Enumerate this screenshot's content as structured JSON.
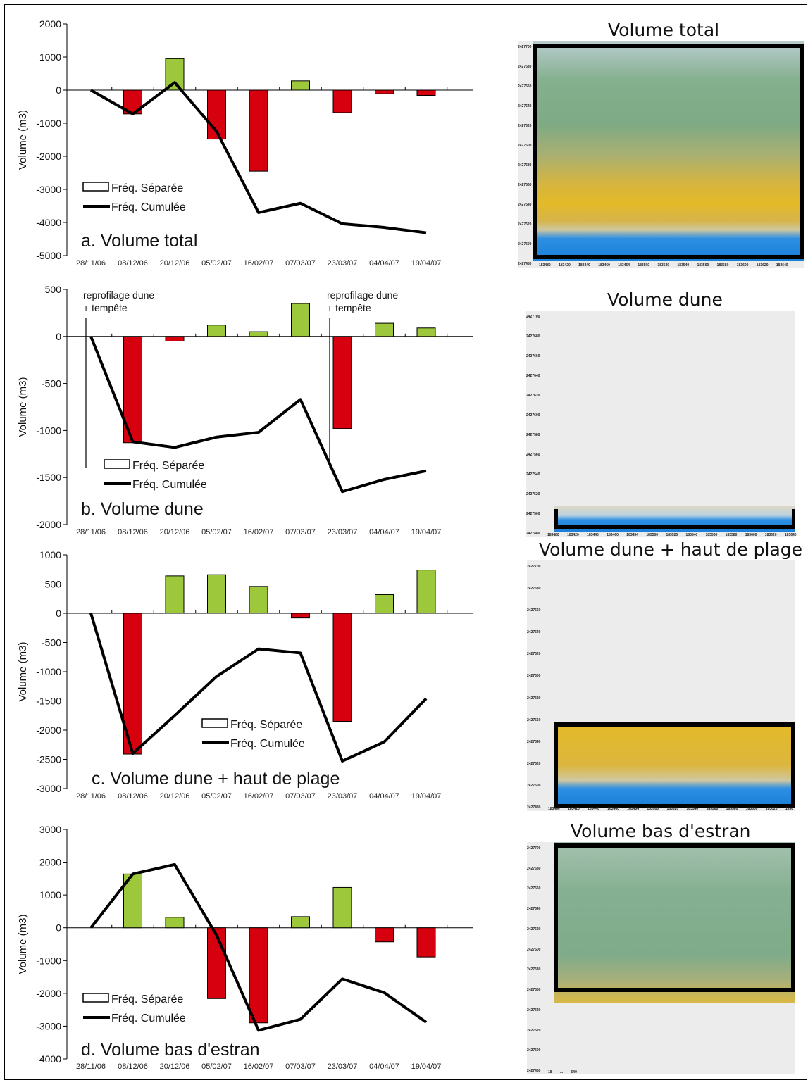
{
  "chart_data": [
    {
      "type": "bar",
      "title": "a. Volume total",
      "ylabel": "Volume (m3)",
      "ylim": [
        -5000,
        2000
      ],
      "yticks": [
        2000,
        1000,
        0,
        -1000,
        -2000,
        -3000,
        -4000,
        -5000
      ],
      "ytick_labels": [
        "2000",
        "1000",
        "0",
        "-1000",
        "-2000",
        "-3000",
        "-4000",
        "-5000"
      ],
      "categories": [
        "28/11/06",
        "08/12/06",
        "20/12/06",
        "05/02/07",
        "16/02/07",
        "07/03/07",
        "23/03/07",
        "04/04/07",
        "19/04/07"
      ],
      "series": [
        {
          "name": "Fréq. Séparée",
          "type": "bar",
          "values": [
            0,
            -720,
            950,
            -1480,
            -2450,
            280,
            -680,
            -110,
            -160
          ]
        },
        {
          "name": "Fréq. Cumulée",
          "type": "line",
          "values": [
            0,
            -720,
            230,
            -1250,
            -3700,
            -3420,
            -4040,
            -4150,
            -4310
          ]
        }
      ],
      "annotations": []
    },
    {
      "type": "bar",
      "title": "b. Volume dune",
      "ylabel": "Volume (m3)",
      "ylim": [
        -2000,
        500
      ],
      "yticks": [
        500,
        0,
        -500,
        -1000,
        -1500,
        -2000
      ],
      "ytick_labels": [
        "500",
        "0",
        "-500",
        "-1000",
        "-1500",
        "-2000"
      ],
      "categories": [
        "28/11/06",
        "08/12/06",
        "20/12/06",
        "05/02/07",
        "16/02/07",
        "07/03/07",
        "23/03/07",
        "04/04/07",
        "19/04/07"
      ],
      "series": [
        {
          "name": "Fréq. Séparée",
          "type": "bar",
          "values": [
            0,
            -1130,
            -50,
            120,
            50,
            350,
            -980,
            140,
            90
          ]
        },
        {
          "name": "Fréq. Cumulée",
          "type": "line",
          "values": [
            0,
            -1120,
            -1180,
            -1070,
            -1020,
            -670,
            -1650,
            -1520,
            -1430
          ]
        }
      ],
      "annotations": [
        {
          "lines": [
            "reprofilage dune",
            "+ tempête"
          ],
          "at_category": 0
        },
        {
          "lines": [
            "reprofilage dune",
            "+ tempête"
          ],
          "at_category": 5.5
        }
      ]
    },
    {
      "type": "bar",
      "title": "c. Volume dune + haut de plage",
      "ylabel": "Volume (m3)",
      "ylim": [
        -3000,
        1000
      ],
      "yticks": [
        1000,
        500,
        0,
        -500,
        -1000,
        -1500,
        -2000,
        -2500,
        -3000
      ],
      "ytick_labels": [
        "1000",
        "500",
        "0",
        "-500",
        "-1000",
        "-1500",
        "-2000",
        "-2500",
        "-3000"
      ],
      "categories": [
        "28/11/06",
        "08/12/06",
        "20/12/06",
        "05/02/07",
        "16/02/07",
        "07/03/07",
        "23/03/07",
        "04/04/07",
        "19/04/07"
      ],
      "series": [
        {
          "name": "Fréq. Séparée",
          "type": "bar",
          "values": [
            0,
            -2410,
            640,
            660,
            460,
            -80,
            -1850,
            320,
            740
          ]
        },
        {
          "name": "Fréq. Cumulée",
          "type": "line",
          "values": [
            0,
            -2400,
            -1750,
            -1080,
            -610,
            -680,
            -2530,
            -2200,
            -1460
          ]
        }
      ],
      "annotations": []
    },
    {
      "type": "bar",
      "title": "d. Volume bas d'estran",
      "ylabel": "Volume (m3)",
      "ylim": [
        -4000,
        3000
      ],
      "yticks": [
        3000,
        2000,
        1000,
        0,
        -1000,
        -2000,
        -3000,
        -4000
      ],
      "ytick_labels": [
        "3000",
        "2000",
        "1000",
        "0",
        "-1000",
        "-2000",
        "-3000",
        "-4000"
      ],
      "categories": [
        "28/11/06",
        "08/12/06",
        "20/12/06",
        "05/02/07",
        "16/02/07",
        "07/03/07",
        "23/03/07",
        "04/04/07",
        "19/04/07"
      ],
      "series": [
        {
          "name": "Fréq. Séparée",
          "type": "bar",
          "values": [
            0,
            1640,
            320,
            -2160,
            -2900,
            340,
            1230,
            -430,
            -890
          ]
        },
        {
          "name": "Fréq. Cumulée",
          "type": "line",
          "values": [
            0,
            1640,
            1930,
            -230,
            -3130,
            -2790,
            -1560,
            -1980,
            -2880
          ]
        }
      ],
      "annotations": []
    }
  ],
  "colors": {
    "positive_bar": "#9dc83c",
    "negative_bar": "#d7000f",
    "line": "#000000",
    "sea": "#1e90e0",
    "sand": "#e3b82a",
    "vegetation": "#7aa88a",
    "map_background": "#ececec",
    "highlight_frame": "#000000"
  },
  "maps": [
    {
      "title": "Volume total",
      "y_ticks": [
        "2427700",
        "2427680",
        "2427660",
        "2427640",
        "2427620",
        "2427600",
        "2427580",
        "2427560",
        "2427540",
        "2427520",
        "2427500",
        "2427480"
      ],
      "x_axis_text": "183480 183420 183440 183460 183454 183500 183520 183540 183560 183580 183600 183620 183640",
      "highlighted_zone": "whole profile"
    },
    {
      "title": "Volume dune",
      "y_ticks": [
        "2427700",
        "2427680",
        "2427660",
        "2427640",
        "2427620",
        "2427600",
        "2427580",
        "2427560",
        "2427540",
        "2427520",
        "2427500",
        "2427480"
      ],
      "x_axis_text": "183480 183420 183440 183460 183454 183500 183520 183540 183560 183580 183600 183620 183640",
      "highlighted_zone": "dune"
    },
    {
      "title": "Volume dune + haut de plage",
      "y_ticks": [
        "2427700",
        "2427680",
        "2427660",
        "2427640",
        "2427620",
        "2427600",
        "2427580",
        "2427560",
        "2427540",
        "2427520",
        "2427500",
        "2427480"
      ],
      "x_axis_text": "183480 183420 183440 183460 183454 183500 183520 183540 183560 183580 183600 183620 1836",
      "highlighted_zone": "dune + upper beach"
    },
    {
      "title": "Volume bas d'estran",
      "y_ticks": [
        "2427700",
        "2427680",
        "2427660",
        "2427640",
        "2427620",
        "2427600",
        "2427580",
        "2427560",
        "2427540",
        "2427520",
        "2427500",
        "2427480"
      ],
      "x_axis_text": "18 ... 640",
      "highlighted_zone": "lower foreshore"
    }
  ]
}
